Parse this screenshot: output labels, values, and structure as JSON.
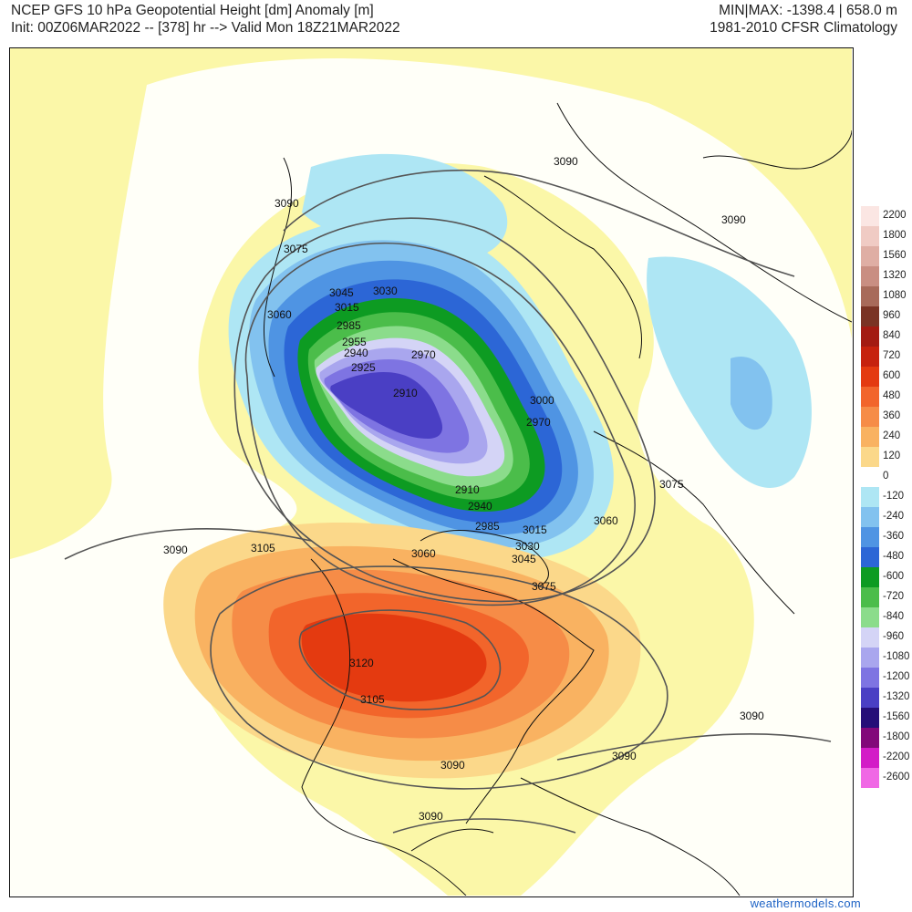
{
  "header": {
    "title_line1": "NCEP GFS 10 hPa Geopotential Height [dm] Anomaly [m]",
    "title_line2": "Init: 00Z06MAR2022 -- [378] hr --> Valid Mon 18Z21MAR2022",
    "minmax": "MIN|MAX: -1398.4 | 658.0 m",
    "climatology": "1981-2010 CFSR Climatology"
  },
  "contour_labels": [
    "3090",
    "3090",
    "3090",
    "3075",
    "3060",
    "3045",
    "3030",
    "3015",
    "2985",
    "2955",
    "2940",
    "2925",
    "2910",
    "2970",
    "3000",
    "2970",
    "3075",
    "3060",
    "2910",
    "2940",
    "2985",
    "3015",
    "3030",
    "3045",
    "3060",
    "3075",
    "3090",
    "3105",
    "3120",
    "3105",
    "3090",
    "3090",
    "3090",
    "3090"
  ],
  "colorbar": {
    "ticks": [
      "2200",
      "1800",
      "1560",
      "1320",
      "1080",
      "960",
      "840",
      "720",
      "600",
      "480",
      "360",
      "240",
      "120",
      "0",
      "-120",
      "-240",
      "-360",
      "-480",
      "-600",
      "-720",
      "-840",
      "-960",
      "-1080",
      "-1200",
      "-1320",
      "-1560",
      "-1800",
      "-2200",
      "-2600"
    ],
    "colors": [
      "#fbe6e3",
      "#f0cbc4",
      "#dfaea4",
      "#c98e82",
      "#a86a5a",
      "#7a3324",
      "#a31b12",
      "#c6220e",
      "#e43a10",
      "#f2652b",
      "#f68c47",
      "#f9b261",
      "#fbd88a",
      "#ffffff",
      "#aee6f4",
      "#82c2ef",
      "#4f94e3",
      "#2c66d6",
      "#0d9b22",
      "#4bbd4a",
      "#8bdc8b",
      "#d4d4f6",
      "#a9a6ee",
      "#7e74e2",
      "#4a3fc4",
      "#250e78",
      "#82087a",
      "#d31cc7",
      "#f068e5"
    ]
  },
  "credit": "weathermodels.com"
}
